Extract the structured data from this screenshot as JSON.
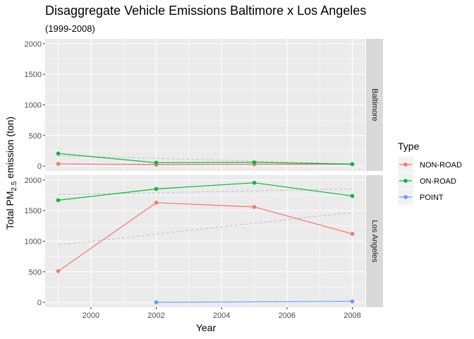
{
  "chart_data": {
    "type": "line",
    "title": "Disaggregate Vehicle Emissions Baltimore x Los Angeles",
    "subtitle": "(1999-2008)",
    "xlabel": "Year",
    "ylabel": {
      "prefix": "Total PM",
      "subscript": "2.5",
      "suffix": " emission (ton)"
    },
    "x_ticks": [
      "2000",
      "2002",
      "2004",
      "2006",
      "2008"
    ],
    "y_ticks": [
      "0",
      "500",
      "1000",
      "1500",
      "2000"
    ],
    "xlim": [
      1998.6,
      2008.4
    ],
    "ylim": [
      -80,
      2080
    ],
    "grid": true,
    "legend": {
      "title": "Type",
      "position": "right",
      "entries": [
        {
          "label": "NON-ROAD",
          "color": "#F8766D"
        },
        {
          "label": "ON-ROAD",
          "color": "#00BA38"
        },
        {
          "label": "POINT",
          "color": "#619CFF"
        }
      ]
    },
    "trend_line_color": "#bebebe",
    "panels": [
      {
        "strip": "Baltimore",
        "series": [
          {
            "name": "NON-ROAD",
            "color": "#F8766D",
            "x": [
              1999,
              2002,
              2005,
              2008
            ],
            "y": [
              35,
              20,
              28,
              30
            ],
            "trend": [
              35,
              30
            ]
          },
          {
            "name": "ON-ROAD",
            "color": "#00BA38",
            "x": [
              1999,
              2002,
              2005,
              2008
            ],
            "y": [
              205,
              55,
              60,
              30
            ],
            "trend": [
              170,
              35
            ]
          }
        ]
      },
      {
        "strip": "Los Angeles",
        "series": [
          {
            "name": "NON-ROAD",
            "color": "#F8766D",
            "x": [
              1999,
              2002,
              2005,
              2008
            ],
            "y": [
              510,
              1630,
              1560,
              1120
            ],
            "trend": [
              940,
              1470
            ]
          },
          {
            "name": "ON-ROAD",
            "color": "#00BA38",
            "x": [
              1999,
              2002,
              2005,
              2008
            ],
            "y": [
              1670,
              1855,
              1955,
              1740
            ],
            "trend": [
              1760,
              1855
            ]
          },
          {
            "name": "POINT",
            "color": "#619CFF",
            "x": [
              2002,
              2008
            ],
            "y": [
              0,
              15
            ],
            "trend": [
              0,
              15
            ]
          }
        ]
      }
    ]
  }
}
